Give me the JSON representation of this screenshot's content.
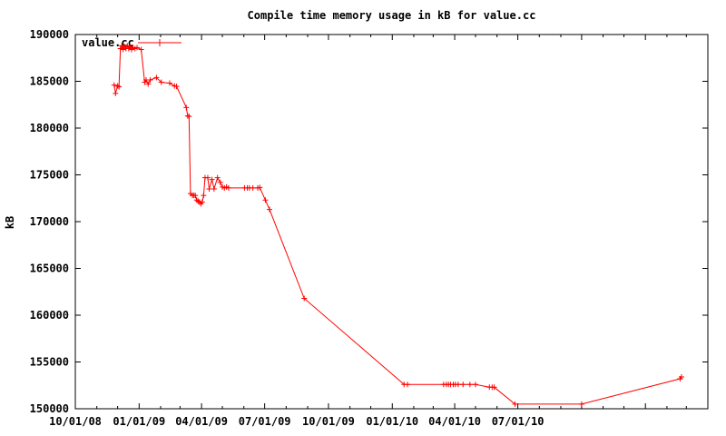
{
  "chart_data": {
    "type": "line",
    "title": "Compile time memory usage in kB for value.cc",
    "xlabel": "",
    "ylabel": "kB",
    "legend": {
      "position": "top-left",
      "label": "value.cc"
    },
    "colors": {
      "background": "#ffffff",
      "line": "#ff0000",
      "text": "#000000",
      "border": "#000000"
    },
    "x_axis": {
      "start": "10/01/08",
      "end": "04/01/11",
      "tick_labels": [
        "10/01/08",
        "01/01/09",
        "04/01/09",
        "07/01/09",
        "10/01/09",
        "01/01/10",
        "04/01/10",
        "07/01/10"
      ],
      "major_tick_every_months": 3,
      "minor_tick_every_months": 1
    },
    "y_axis": {
      "min": 150000,
      "max": 190000,
      "tick_step": 5000,
      "tick_labels": [
        "150000",
        "155000",
        "160000",
        "165000",
        "170000",
        "175000",
        "180000",
        "185000",
        "190000"
      ]
    },
    "series": [
      {
        "name": "value.cc",
        "color": "#ff0000",
        "marker": "plus",
        "points": [
          [
            "11/26/08",
            184600
          ],
          [
            "11/28/08",
            183700
          ],
          [
            "12/01/08",
            184500
          ],
          [
            "12/03/08",
            184400
          ],
          [
            "12/05/08",
            188500
          ],
          [
            "12/07/08",
            188800
          ],
          [
            "12/09/08",
            188400
          ],
          [
            "12/11/08",
            188700
          ],
          [
            "12/13/08",
            188500
          ],
          [
            "12/15/08",
            188800
          ],
          [
            "12/17/08",
            188500
          ],
          [
            "12/19/08",
            188700
          ],
          [
            "12/21/08",
            188400
          ],
          [
            "12/23/08",
            188600
          ],
          [
            "12/26/08",
            188500
          ],
          [
            "12/29/08",
            188600
          ],
          [
            "01/04/09",
            188400
          ],
          [
            "01/09/09",
            184900
          ],
          [
            "01/11/09",
            185150
          ],
          [
            "01/14/09",
            184700
          ],
          [
            "01/17/09",
            185150
          ],
          [
            "01/26/09",
            185400
          ],
          [
            "02/02/09",
            184900
          ],
          [
            "02/14/09",
            184800
          ],
          [
            "02/21/09",
            184500
          ],
          [
            "02/24/09",
            184450
          ],
          [
            "03/10/09",
            182200
          ],
          [
            "03/12/09",
            181300
          ],
          [
            "03/14/09",
            181250
          ],
          [
            "03/16/09",
            173000
          ],
          [
            "03/19/09",
            172800
          ],
          [
            "03/21/09",
            172800
          ],
          [
            "03/23/09",
            172800
          ],
          [
            "03/25/09",
            172300
          ],
          [
            "03/27/09",
            172200
          ],
          [
            "03/29/09",
            172100
          ],
          [
            "03/31/09",
            171900
          ],
          [
            "04/02/09",
            172100
          ],
          [
            "04/04/09",
            172800
          ],
          [
            "04/06/09",
            174700
          ],
          [
            "04/10/09",
            174700
          ],
          [
            "04/12/09",
            173500
          ],
          [
            "04/16/09",
            174500
          ],
          [
            "04/19/09",
            173500
          ],
          [
            "04/24/09",
            174700
          ],
          [
            "04/28/09",
            174200
          ],
          [
            "05/01/09",
            173700
          ],
          [
            "05/04/09",
            173600
          ],
          [
            "05/07/09",
            173700
          ],
          [
            "05/10/09",
            173600
          ],
          [
            "06/02/09",
            173600
          ],
          [
            "06/06/09",
            173600
          ],
          [
            "06/09/09",
            173600
          ],
          [
            "06/14/09",
            173600
          ],
          [
            "06/21/09",
            173600
          ],
          [
            "06/24/09",
            173650
          ],
          [
            "07/02/09",
            172300
          ],
          [
            "07/08/09",
            171300
          ],
          [
            "08/27/09",
            161800
          ],
          [
            "01/18/10",
            152600
          ],
          [
            "01/23/10",
            152600
          ],
          [
            "03/16/10",
            152600
          ],
          [
            "03/20/10",
            152600
          ],
          [
            "03/23/10",
            152600
          ],
          [
            "03/26/10",
            152600
          ],
          [
            "03/30/10",
            152600
          ],
          [
            "04/02/10",
            152600
          ],
          [
            "04/06/10",
            152600
          ],
          [
            "04/13/10",
            152600
          ],
          [
            "04/23/10",
            152600
          ],
          [
            "05/01/10",
            152600
          ],
          [
            "05/21/10",
            152300
          ],
          [
            "05/25/10",
            152300
          ],
          [
            "05/28/10",
            152300
          ],
          [
            "06/27/10",
            150500
          ],
          [
            "10/01/10",
            150500
          ],
          [
            "02/20/11",
            153200
          ],
          [
            "02/22/11",
            153400
          ]
        ]
      }
    ]
  }
}
